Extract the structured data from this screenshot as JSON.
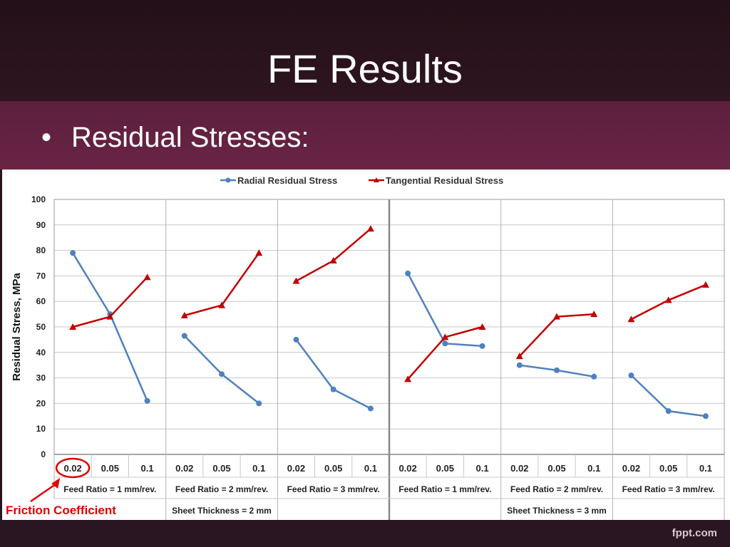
{
  "slide": {
    "title": "FE Results",
    "bullet": "Residual Stresses:",
    "footer_brand": "fppt.com"
  },
  "chart_data": {
    "type": "line",
    "ylabel": "Residual Stress, MPa",
    "ylim": [
      0,
      100
    ],
    "yticks": [
      0,
      10,
      20,
      30,
      40,
      50,
      60,
      70,
      80,
      90,
      100
    ],
    "grid": true,
    "legend_position": "top",
    "categories": [
      "0.02",
      "0.05",
      "0.1"
    ],
    "groups": [
      {
        "label": "Feed Ratio = 1 mm/rev.",
        "sheet": "Sheet Thickness = 2 mm",
        "radial": [
          79,
          55,
          21
        ],
        "tangential": [
          50,
          54,
          69.5
        ]
      },
      {
        "label": "Feed Ratio = 2 mm/rev.",
        "sheet": "Sheet Thickness = 2 mm",
        "radial": [
          46.5,
          31.5,
          20
        ],
        "tangential": [
          54.5,
          58.5,
          79
        ]
      },
      {
        "label": "Feed Ratio = 3 mm/rev.",
        "sheet": "Sheet Thickness = 2 mm",
        "radial": [
          45,
          25.5,
          18
        ],
        "tangential": [
          68,
          76,
          88.5
        ]
      },
      {
        "label": "Feed Ratio = 1 mm/rev.",
        "sheet": "Sheet Thickness = 3 mm",
        "radial": [
          71,
          43.5,
          42.5
        ],
        "tangential": [
          29.5,
          46,
          50
        ]
      },
      {
        "label": "Feed Ratio = 2 mm/rev.",
        "sheet": "Sheet Thickness = 3 mm",
        "radial": [
          35,
          33,
          30.5
        ],
        "tangential": [
          38.5,
          54,
          55
        ]
      },
      {
        "label": "Feed Ratio = 3 mm/rev.",
        "sheet": "Sheet Thickness = 3 mm",
        "radial": [
          31,
          17,
          15
        ],
        "tangential": [
          53,
          60.5,
          66.5
        ]
      }
    ],
    "sheet_labels": [
      "Sheet Thickness = 2 mm",
      "Sheet Thickness = 3 mm"
    ],
    "series": [
      {
        "name": "Radial Residual Stress",
        "key": "radial",
        "color": "#4f81bd",
        "marker": "circle"
      },
      {
        "name": "Tangential Residual Stress",
        "key": "tangential",
        "color": "#c00000",
        "marker": "triangle"
      }
    ],
    "annotation": {
      "text": "Friction Coefficient",
      "color": "#e00000",
      "highlight": "0.02"
    }
  }
}
